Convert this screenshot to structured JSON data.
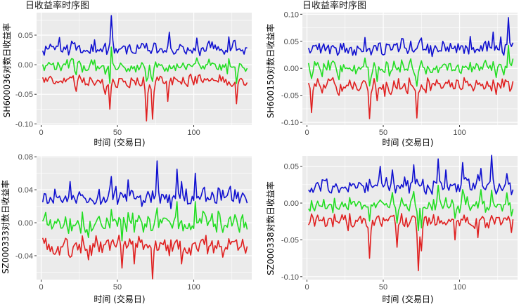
{
  "colors": {
    "panel_bg": "#ebebeb",
    "grid": "#ffffff",
    "high": "#1010d0",
    "mid": "#22dd22",
    "low": "#e02020"
  },
  "chart_data": [
    {
      "type": "line",
      "title": "日收益率时序图",
      "xlabel": "时间 (交易日)",
      "ylabel": "SH600036对数日收益率",
      "xlim": [
        -3,
        138
      ],
      "ylim": [
        -0.102,
        0.088
      ],
      "xticks": [
        0,
        50,
        100
      ],
      "yticks": [
        -0.1,
        -0.05,
        0.0,
        0.05
      ],
      "ytick_labels": [
        "-0.10",
        "-0.05",
        "0.00",
        "0.05"
      ],
      "n": 135,
      "seed": 11,
      "profile": {
        "base_hi": 0.016,
        "base_mid": -0.005,
        "base_lo": -0.018,
        "noise": 0.012
      },
      "spikes_hi": [
        [
          11,
          0.046
        ],
        [
          21,
          0.037
        ],
        [
          34,
          0.042
        ],
        [
          45,
          0.083
        ],
        [
          74,
          0.036
        ],
        [
          83,
          0.055
        ],
        [
          101,
          0.045
        ],
        [
          122,
          0.047
        ],
        [
          109,
          0.04
        ]
      ],
      "spikes_lo": [
        [
          22,
          -0.045
        ],
        [
          44,
          -0.075
        ],
        [
          68,
          -0.095
        ],
        [
          72,
          -0.092
        ],
        [
          82,
          -0.062
        ],
        [
          127,
          -0.066
        ],
        [
          41,
          -0.05
        ]
      ],
      "series": [
        {
          "name": "",
          "color_key": "high"
        },
        {
          "name": "",
          "color_key": "mid"
        },
        {
          "name": "",
          "color_key": "low"
        }
      ]
    },
    {
      "type": "line",
      "title": "日收益率时序图",
      "xlabel": "时间 (交易日)",
      "ylabel": "SH600150对数日收益率",
      "xlim": [
        -3,
        138
      ],
      "ylim": [
        -0.105,
        0.103
      ],
      "xticks": [
        0,
        50,
        100
      ],
      "yticks": [
        -0.1,
        -0.05,
        0.0,
        0.05,
        0.1
      ],
      "ytick_labels": [
        "-0.10",
        "-0.05",
        "0.00",
        "0.05",
        "0.10"
      ],
      "n": 135,
      "seed": 23,
      "profile": {
        "base_hi": 0.026,
        "base_mid": -0.002,
        "base_lo": -0.02,
        "noise": 0.014
      },
      "spikes_hi": [
        [
          37,
          0.057
        ],
        [
          47,
          0.047
        ],
        [
          61,
          0.055
        ],
        [
          88,
          0.05
        ],
        [
          93,
          0.046
        ],
        [
          106,
          0.059
        ],
        [
          121,
          0.067
        ],
        [
          126,
          0.058
        ],
        [
          131,
          0.094
        ],
        [
          116,
          0.05
        ]
      ],
      "spikes_lo": [
        [
          2,
          -0.082
        ],
        [
          20,
          -0.05
        ],
        [
          40,
          -0.093
        ],
        [
          45,
          -0.06
        ],
        [
          71,
          -0.092
        ],
        [
          50,
          -0.052
        ],
        [
          135,
          -0.045
        ]
      ],
      "series": [
        {
          "name": "",
          "color_key": "high"
        },
        {
          "name": "",
          "color_key": "mid"
        },
        {
          "name": "",
          "color_key": "low"
        }
      ]
    },
    {
      "type": "line",
      "title": "",
      "xlabel": "时间 (交易日)",
      "ylabel": "SZ000333对数日收益率",
      "xlim": [
        -3,
        138
      ],
      "ylim": [
        -0.069,
        0.081
      ],
      "xticks": [
        0,
        50,
        100
      ],
      "yticks": [
        -0.04,
        0.0,
        0.04,
        0.08
      ],
      "ytick_labels": [
        "-0.04",
        "0.00",
        "0.04",
        "0.08"
      ],
      "n": 135,
      "seed": 37,
      "profile": {
        "base_hi": 0.02,
        "base_mid": -0.002,
        "base_lo": -0.018,
        "noise": 0.012
      },
      "spikes_hi": [
        [
          18,
          0.05
        ],
        [
          45,
          0.056
        ],
        [
          48,
          0.044
        ],
        [
          56,
          0.052
        ],
        [
          75,
          0.075
        ],
        [
          88,
          0.065
        ],
        [
          100,
          0.06
        ],
        [
          91,
          0.05
        ],
        [
          126,
          0.04
        ]
      ],
      "spikes_lo": [
        [
          5,
          -0.035
        ],
        [
          23,
          -0.033
        ],
        [
          30,
          -0.045
        ],
        [
          52,
          -0.055
        ],
        [
          60,
          -0.05
        ],
        [
          72,
          -0.068
        ],
        [
          91,
          -0.05
        ],
        [
          83,
          -0.04
        ]
      ],
      "series": [
        {
          "name": "",
          "color_key": "high"
        },
        {
          "name": "",
          "color_key": "mid"
        },
        {
          "name": "",
          "color_key": "low"
        }
      ]
    },
    {
      "type": "line",
      "title": "",
      "xlabel": "时间 (交易日)",
      "ylabel": "SZ000338对数日收益率",
      "xlim": [
        -3,
        138
      ],
      "ylim": [
        -0.104,
        0.064
      ],
      "xticks": [
        0,
        50,
        100
      ],
      "yticks": [
        -0.1,
        -0.05,
        0.0,
        0.05
      ],
      "ytick_labels": [
        "-0.10",
        "-0.05",
        "0.00",
        "0.05"
      ],
      "n": 135,
      "seed": 53,
      "profile": {
        "base_hi": 0.014,
        "base_mid": -0.002,
        "base_lo": -0.016,
        "noise": 0.011
      },
      "spikes_hi": [
        [
          47,
          0.05
        ],
        [
          55,
          0.045
        ],
        [
          69,
          0.052
        ],
        [
          85,
          0.06
        ],
        [
          90,
          0.045
        ],
        [
          101,
          0.055
        ],
        [
          113,
          0.047
        ],
        [
          120,
          0.065
        ],
        [
          130,
          0.04
        ]
      ],
      "spikes_lo": [
        [
          40,
          -0.075
        ],
        [
          58,
          -0.06
        ],
        [
          72,
          -0.092
        ],
        [
          74,
          -0.065
        ],
        [
          96,
          -0.05
        ],
        [
          111,
          -0.047
        ],
        [
          133,
          -0.04
        ]
      ],
      "series": [
        {
          "name": "",
          "color_key": "high"
        },
        {
          "name": "",
          "color_key": "mid"
        },
        {
          "name": "",
          "color_key": "low"
        }
      ]
    }
  ]
}
